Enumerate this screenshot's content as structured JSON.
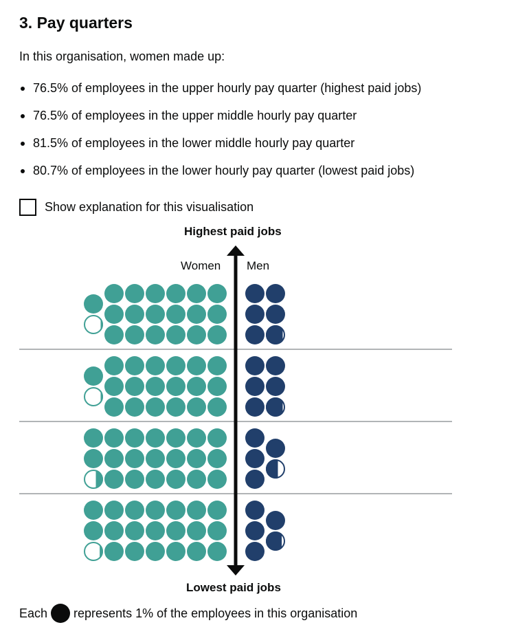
{
  "heading": "3. Pay quarters",
  "intro": "In this organisation, women made up:",
  "bullets": [
    "76.5% of employees in the upper hourly pay quarter (highest paid jobs)",
    "76.5% of employees in the upper middle hourly pay quarter",
    "81.5% of employees in the lower middle hourly pay quarter",
    "80.7% of employees in the lower hourly pay quarter (lowest paid jobs)"
  ],
  "checkbox": {
    "label": "Show explanation for this visualisation",
    "checked": false
  },
  "key": {
    "prefix": "Each",
    "suffix": "represents 1% of the employees in this organisation",
    "icon": "filled-circle-icon"
  },
  "colors": {
    "women": "#40a095",
    "men": "#213f6b",
    "divider": "#b1b4b6"
  },
  "chart_data": {
    "type": "dot-matrix",
    "top_label": "Highest paid jobs",
    "bottom_label": "Lowest paid jobs",
    "legend": [
      "Women",
      "Men"
    ],
    "categories": [
      "Upper hourly pay quarter",
      "Upper middle hourly pay quarter",
      "Lower middle hourly pay quarter",
      "Lower hourly pay quarter"
    ],
    "series": [
      {
        "name": "Women",
        "values": [
          76.5,
          76.5,
          81.5,
          80.7
        ]
      },
      {
        "name": "Men",
        "values": [
          23.5,
          23.5,
          18.5,
          19.3
        ]
      }
    ]
  }
}
